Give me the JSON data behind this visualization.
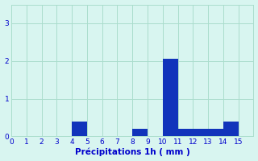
{
  "title": "",
  "xlabel": "Précipitations 1h ( mm )",
  "ylabel": "",
  "bar_data": [
    {
      "x": 5,
      "height": 0.4
    },
    {
      "x": 9,
      "height": 0.2
    },
    {
      "x": 11,
      "height": 2.05
    },
    {
      "x": 12,
      "height": 0.2
    },
    {
      "x": 13,
      "height": 0.2
    },
    {
      "x": 14,
      "height": 0.2
    },
    {
      "x": 15,
      "height": 0.4
    }
  ],
  "bar_color": "#1133bb",
  "background_color": "#d8f5f0",
  "grid_color": "#aaddcc",
  "xlim": [
    0,
    16
  ],
  "ylim": [
    0,
    3.5
  ],
  "yticks": [
    0,
    1,
    2,
    3
  ],
  "xticks": [
    0,
    1,
    2,
    3,
    4,
    5,
    6,
    7,
    8,
    9,
    10,
    11,
    12,
    13,
    14,
    15
  ],
  "tick_color": "#0000cc",
  "label_color": "#0000cc",
  "label_fontsize": 7.5,
  "tick_fontsize": 6.5
}
